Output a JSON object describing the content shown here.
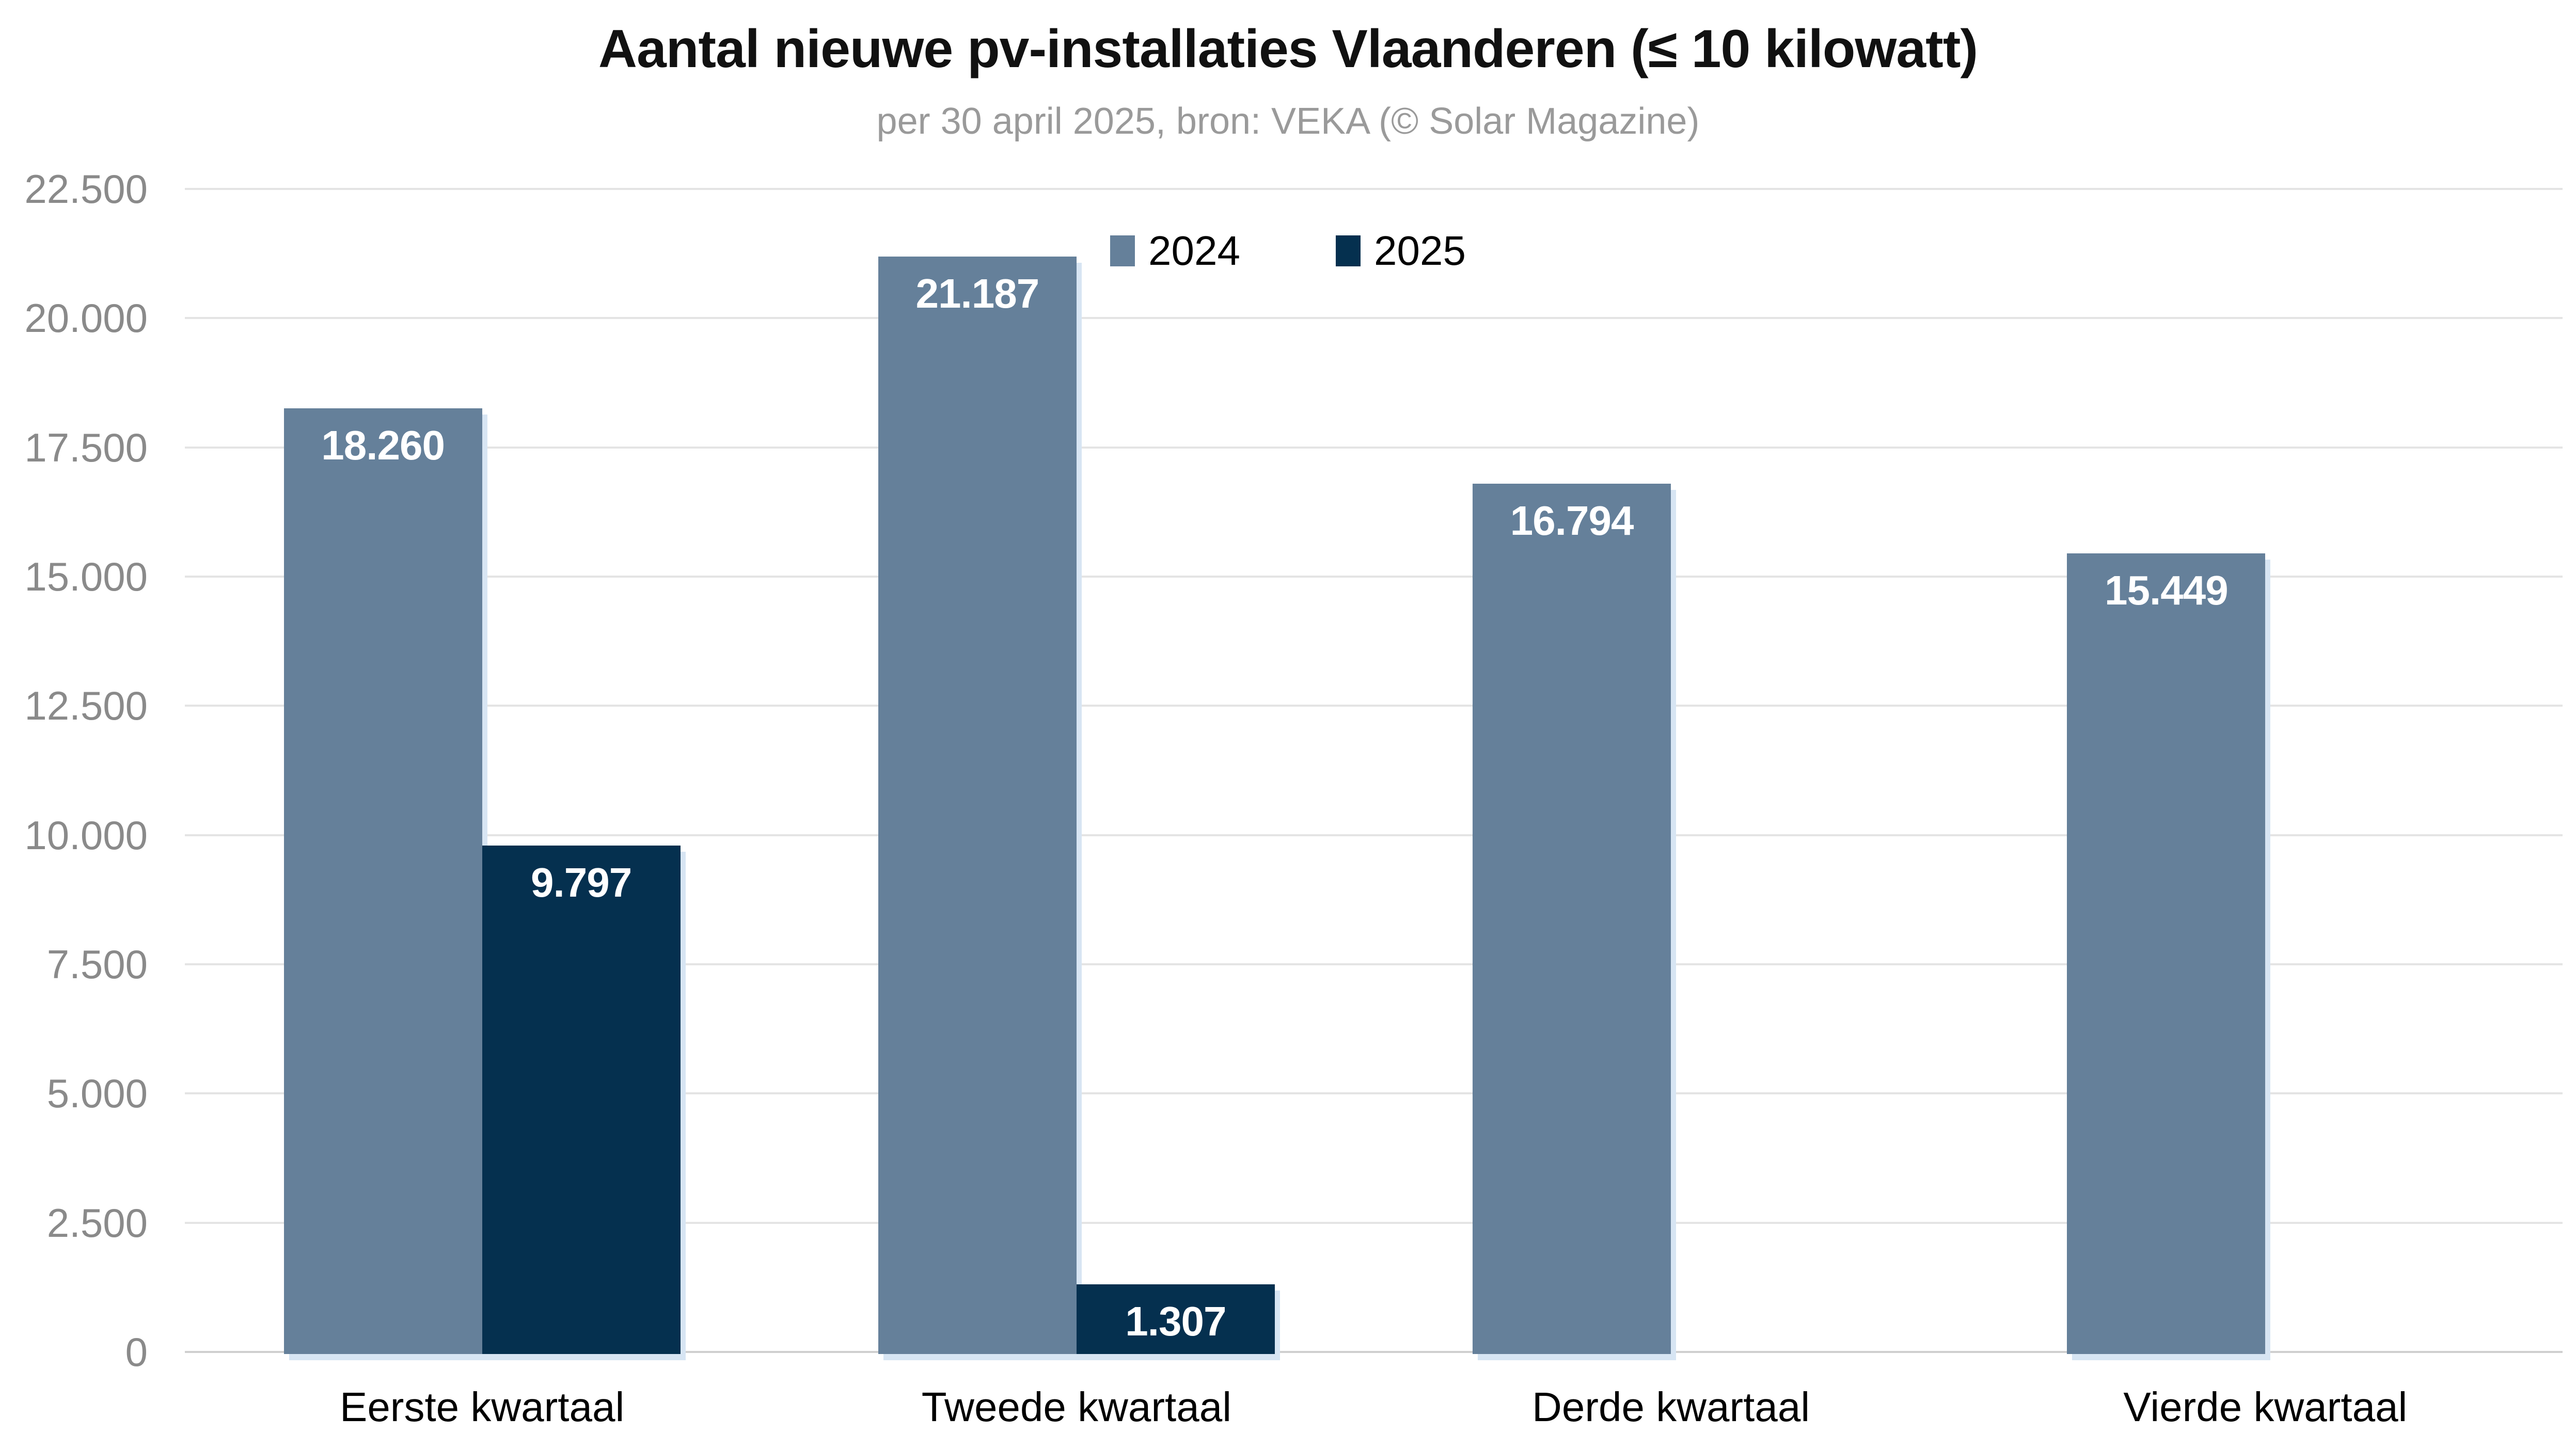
{
  "header": {
    "title": "Aantal nieuwe pv-installaties Vlaanderen (≤ 10 kilowatt)",
    "subtitle": "per 30 april 2025, bron: VEKA (© Solar Magazine)"
  },
  "chart_data": {
    "type": "bar",
    "title": "Aantal nieuwe pv-installaties Vlaanderen (≤ 10 kilowatt)",
    "subtitle": "per 30 april 2025, bron: VEKA (© Solar Magazine)",
    "categories": [
      "Eerste kwartaal",
      "Tweede kwartaal",
      "Derde kwartaal",
      "Vierde kwartaal"
    ],
    "series": [
      {
        "name": "2024",
        "color": "#65809a",
        "values": [
          18260,
          21187,
          16794,
          15449
        ],
        "value_labels": [
          "18.260",
          "21.187",
          "16.794",
          "15.449"
        ]
      },
      {
        "name": "2025",
        "color": "#05304f",
        "values": [
          9797,
          1307,
          null,
          null
        ],
        "value_labels": [
          "9.797",
          "1.307",
          "",
          ""
        ]
      }
    ],
    "y_axis": {
      "min": 0,
      "max": 22500,
      "step": 2500,
      "tick_labels": [
        "0",
        "2.500",
        "5.000",
        "7.500",
        "10.000",
        "12.500",
        "15.000",
        "17.500",
        "20.000",
        "22.500"
      ]
    },
    "x_label": "",
    "y_label": "",
    "grid": true,
    "legend_position": "top-center",
    "styles": {
      "grid_color": "#e4e4e4",
      "baseline_color": "#cfcfcf",
      "y_tick_text_color": "#8a8a8a",
      "category_text_color": "#000000",
      "value_label_color": "#ffffff",
      "bar_shadow_color": "#d7e5f3",
      "title_color": "#111111",
      "subtitle_color": "#9a9a9a",
      "background_color": "#ffffff"
    }
  }
}
